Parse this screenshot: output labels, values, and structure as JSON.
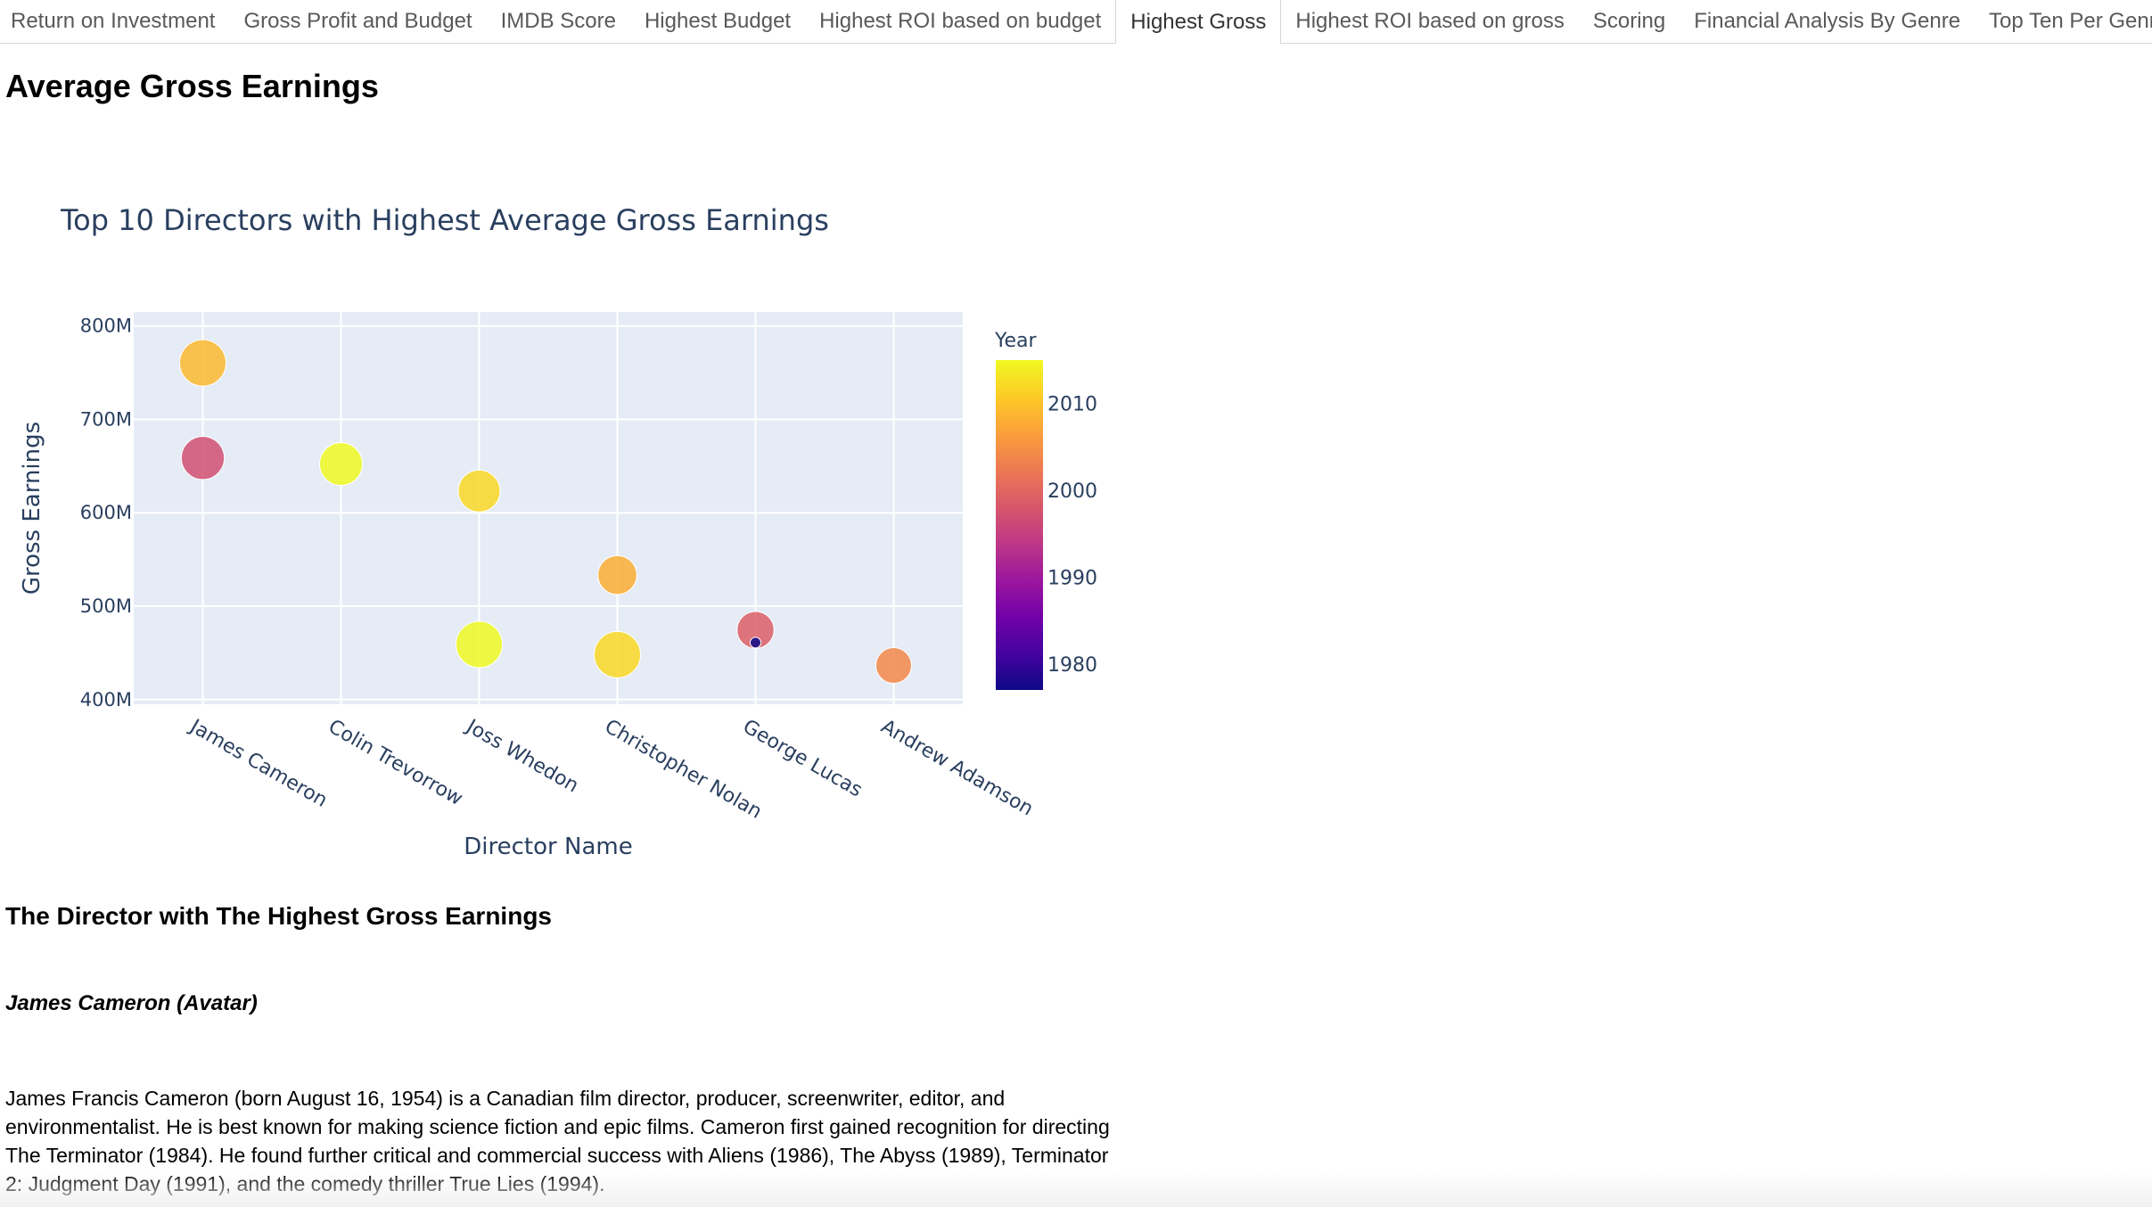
{
  "tabs": [
    {
      "label": "Return on Investment",
      "active": false
    },
    {
      "label": "Gross Profit and Budget",
      "active": false
    },
    {
      "label": "IMDB Score",
      "active": false
    },
    {
      "label": "Highest Budget",
      "active": false
    },
    {
      "label": "Highest ROI based on budget",
      "active": false
    },
    {
      "label": "Highest Gross",
      "active": true
    },
    {
      "label": "Highest ROI based on gross",
      "active": false
    },
    {
      "label": "Scoring",
      "active": false
    },
    {
      "label": "Financial Analysis By Genre",
      "active": false
    },
    {
      "label": "Top Ten Per Genre",
      "active": false
    }
  ],
  "page": {
    "heading": "Average Gross Earnings",
    "subheading": "The Director with The Highest Gross Earnings",
    "director_name": "James Cameron (Avatar)",
    "bio": "James Francis Cameron (born August 16, 1954) is a Canadian film director, producer, screenwriter, editor, and environmentalist. He is best known for making science fiction and epic films. Cameron first gained recognition for directing The Terminator (1984). He found further critical and commercial success with Aliens (1986), The Abyss (1989), Terminator 2: Judgment Day (1991), and the comedy thriller True Lies (1994)."
  },
  "chart_data": {
    "type": "scatter",
    "title": "Top 10 Directors with Highest Average Gross Earnings",
    "xlabel": "Director Name",
    "ylabel": "Gross Earnings",
    "categories": [
      "James Cameron",
      "Colin Trevorrow",
      "Joss Whedon",
      "Christopher Nolan",
      "George Lucas",
      "Andrew Adamson"
    ],
    "ylim": [
      395000000,
      815000000
    ],
    "y_ticks": [
      400000000,
      500000000,
      600000000,
      700000000,
      800000000
    ],
    "y_tick_labels": [
      "400M",
      "500M",
      "600M",
      "700M",
      "800M"
    ],
    "grid": true,
    "colorbar": {
      "title": "Year",
      "range": [
        1977,
        2015
      ],
      "ticks": [
        1980,
        1990,
        2000,
        2010
      ],
      "tick_labels": [
        "1980",
        "1990",
        "2000",
        "2010"
      ],
      "colorscale": [
        "#0d0887",
        "#46039f",
        "#7201a8",
        "#9c179e",
        "#bd3786",
        "#d8576b",
        "#ed7953",
        "#fb9f3a",
        "#fdca26",
        "#f0f921"
      ]
    },
    "points": [
      {
        "x": "James Cameron",
        "y": 760500000,
        "year": 2009,
        "size": 760500000
      },
      {
        "x": "James Cameron",
        "y": 658700000,
        "year": 1997,
        "size": 658700000
      },
      {
        "x": "Colin Trevorrow",
        "y": 652200000,
        "year": 2015,
        "size": 652200000
      },
      {
        "x": "Joss Whedon",
        "y": 623300000,
        "year": 2012,
        "size": 623300000
      },
      {
        "x": "Joss Whedon",
        "y": 459000000,
        "year": 2015,
        "size": 459000000
      },
      {
        "x": "Christopher Nolan",
        "y": 533300000,
        "year": 2008,
        "size": 533300000
      },
      {
        "x": "Christopher Nolan",
        "y": 448100000,
        "year": 2012,
        "size": 448100000
      },
      {
        "x": "George Lucas",
        "y": 474500000,
        "year": 1999,
        "size": 474500000
      },
      {
        "x": "George Lucas",
        "y": 461000000,
        "year": 1977,
        "size": 461000000
      },
      {
        "x": "Andrew Adamson",
        "y": 436500000,
        "year": 2004,
        "size": 436500000
      }
    ]
  }
}
